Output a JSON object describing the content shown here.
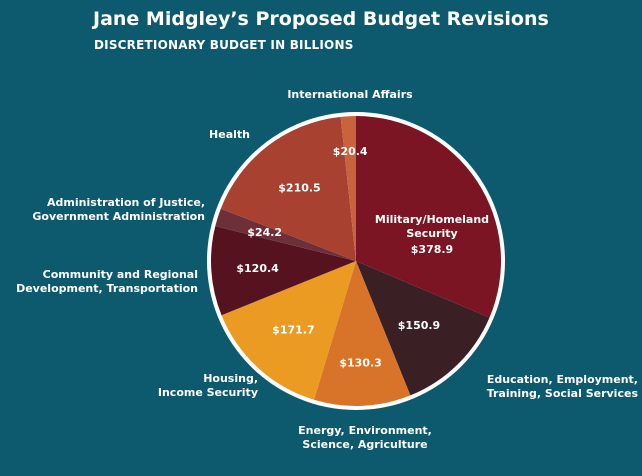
{
  "chart_data": {
    "type": "pie",
    "title": "Jane Midgley’s Proposed Budget Revisions",
    "subtitle": "DISCRETIONARY BUDGET IN BILLIONS",
    "slices": [
      {
        "label": "Military/Homeland Security",
        "value": 378.9,
        "value_label": "$378.9",
        "color": "#7c1523"
      },
      {
        "label": "Education, Employment, Training, Social Services",
        "value": 150.9,
        "value_label": "$150.9",
        "color": "#3a2024"
      },
      {
        "label": "Energy, Environment, Science, Agriculture",
        "value": 130.3,
        "value_label": "$130.3",
        "color": "#d8742a"
      },
      {
        "label": "Housing, Income Security",
        "value": 171.7,
        "value_label": "$171.7",
        "color": "#eb9a22"
      },
      {
        "label": "Community and Regional Development, Transportation",
        "value": 120.4,
        "value_label": "$120.4",
        "color": "#56121f"
      },
      {
        "label": "Administration of Justice, Government Administration",
        "value": 24.2,
        "value_label": "$24.2",
        "color": "#6d3039"
      },
      {
        "label": "Health",
        "value": 210.5,
        "value_label": "$210.5",
        "color": "#a8412f"
      },
      {
        "label": "International Affairs",
        "value": 20.4,
        "value_label": "$20.4",
        "color": "#c9633d"
      }
    ]
  }
}
